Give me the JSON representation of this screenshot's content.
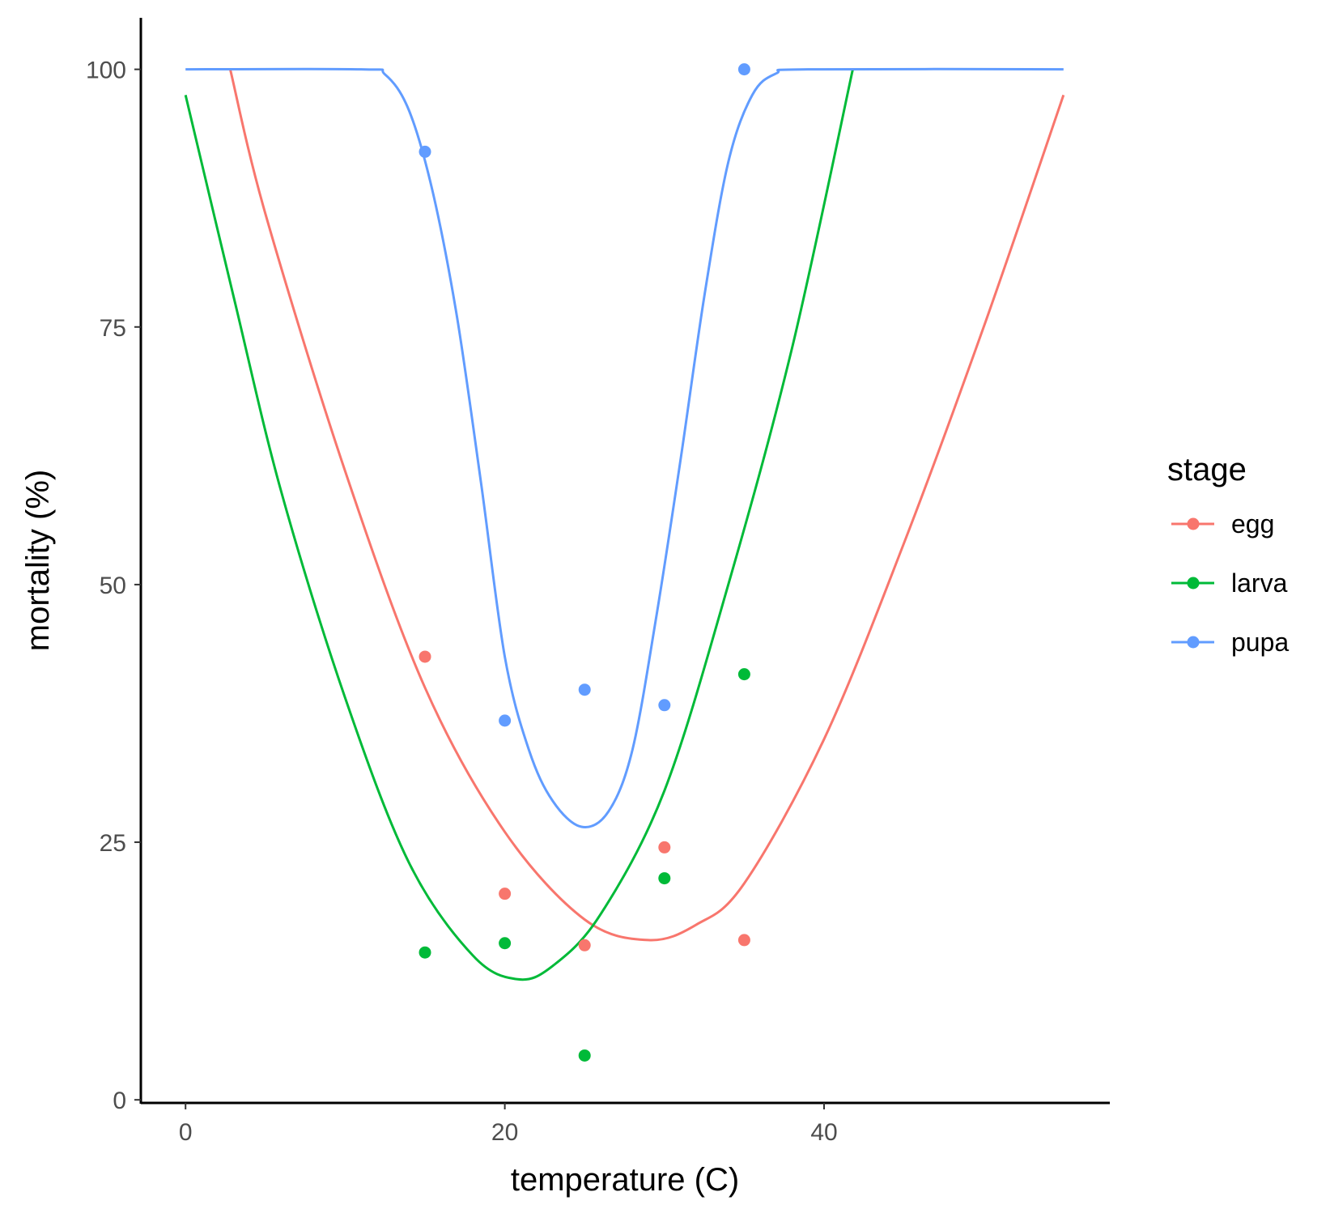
{
  "chart_data": {
    "type": "scatter",
    "xlabel": "temperature (C)",
    "ylabel": "mortality (%)",
    "xlim": [
      -2.8,
      57.9
    ],
    "ylim": [
      -0.3,
      105
    ],
    "x_ticks": [
      0,
      20,
      40
    ],
    "y_ticks": [
      0,
      25,
      50,
      75,
      100
    ],
    "grid": false,
    "legend": {
      "title": "stage",
      "position": "right"
    },
    "series": [
      {
        "name": "egg",
        "color": "#F8766D",
        "points": [
          {
            "x": 15,
            "y": 43
          },
          {
            "x": 20,
            "y": 20
          },
          {
            "x": 25,
            "y": 15
          },
          {
            "x": 30,
            "y": 24.5
          },
          {
            "x": 35,
            "y": 15.5
          }
        ],
        "curve": [
          {
            "x": 2.8,
            "y": 100
          },
          {
            "x": 5,
            "y": 86
          },
          {
            "x": 10,
            "y": 61
          },
          {
            "x": 15,
            "y": 40
          },
          {
            "x": 20,
            "y": 26
          },
          {
            "x": 25,
            "y": 17.5
          },
          {
            "x": 29,
            "y": 15.5
          },
          {
            "x": 32,
            "y": 17
          },
          {
            "x": 35,
            "y": 21
          },
          {
            "x": 40,
            "y": 35
          },
          {
            "x": 45,
            "y": 54
          },
          {
            "x": 50,
            "y": 75
          },
          {
            "x": 55,
            "y": 97.5
          }
        ]
      },
      {
        "name": "larva",
        "color": "#00BA38",
        "points": [
          {
            "x": 15,
            "y": 14.3
          },
          {
            "x": 20,
            "y": 15.2
          },
          {
            "x": 25,
            "y": 4.3
          },
          {
            "x": 30,
            "y": 21.5
          },
          {
            "x": 35,
            "y": 41.3
          }
        ],
        "curve": [
          {
            "x": 0,
            "y": 97.5
          },
          {
            "x": 3,
            "y": 78
          },
          {
            "x": 6,
            "y": 59
          },
          {
            "x": 10,
            "y": 39
          },
          {
            "x": 14,
            "y": 23
          },
          {
            "x": 18,
            "y": 14
          },
          {
            "x": 20.8,
            "y": 11.7
          },
          {
            "x": 23,
            "y": 13
          },
          {
            "x": 26,
            "y": 18
          },
          {
            "x": 30,
            "y": 30
          },
          {
            "x": 34,
            "y": 50
          },
          {
            "x": 38,
            "y": 73
          },
          {
            "x": 41.8,
            "y": 100
          }
        ]
      },
      {
        "name": "pupa",
        "color": "#619CFF",
        "points": [
          {
            "x": 15,
            "y": 92
          },
          {
            "x": 20,
            "y": 36.8
          },
          {
            "x": 25,
            "y": 39.8
          },
          {
            "x": 30,
            "y": 38.3
          },
          {
            "x": 35,
            "y": 100
          }
        ],
        "curve": [
          {
            "x": 0,
            "y": 100
          },
          {
            "x": 11,
            "y": 100
          },
          {
            "x": 12.5,
            "y": 99.5
          },
          {
            "x": 14,
            "y": 96
          },
          {
            "x": 15.5,
            "y": 88
          },
          {
            "x": 17,
            "y": 76
          },
          {
            "x": 18.5,
            "y": 60
          },
          {
            "x": 20,
            "y": 43
          },
          {
            "x": 21.5,
            "y": 34
          },
          {
            "x": 23,
            "y": 29
          },
          {
            "x": 24.8,
            "y": 26.5
          },
          {
            "x": 26.5,
            "y": 28
          },
          {
            "x": 28,
            "y": 34
          },
          {
            "x": 29.5,
            "y": 47
          },
          {
            "x": 31,
            "y": 62
          },
          {
            "x": 32.5,
            "y": 78
          },
          {
            "x": 34,
            "y": 91
          },
          {
            "x": 35.5,
            "y": 97.5
          },
          {
            "x": 37,
            "y": 99.6
          },
          {
            "x": 39,
            "y": 100
          },
          {
            "x": 55,
            "y": 100
          }
        ]
      }
    ]
  }
}
